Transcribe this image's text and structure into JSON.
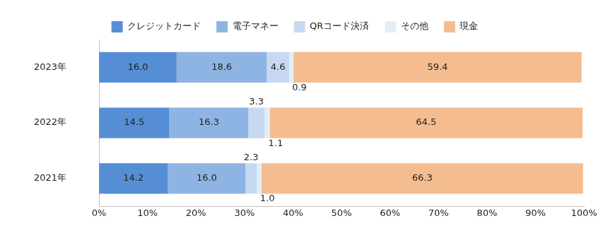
{
  "chart_data": {
    "type": "bar",
    "orientation": "horizontal",
    "stacked": true,
    "data_labels": true,
    "legend": "top",
    "grid": false,
    "categories": [
      "2023年",
      "2022年",
      "2021年"
    ],
    "series": [
      {
        "name": "クレジットカード",
        "color": "#558ed5",
        "values": [
          16.0,
          14.5,
          14.2
        ],
        "value_labels": [
          "16.0",
          "14.5",
          "14.2"
        ]
      },
      {
        "name": "電子マネー",
        "color": "#8eb4e3",
        "values": [
          18.6,
          16.3,
          16.0
        ],
        "value_labels": [
          "18.6",
          "16.3",
          "16.0"
        ]
      },
      {
        "name": "QRコード決済",
        "color": "#c6d9f1",
        "values": [
          4.6,
          3.3,
          2.3
        ],
        "value_labels": [
          "4.6",
          "3.3",
          "2.3"
        ]
      },
      {
        "name": "その他",
        "color": "#e3edf9",
        "values": [
          0.9,
          1.1,
          1.0
        ],
        "value_labels": [
          "0.9",
          "1.1",
          "1.0"
        ]
      },
      {
        "name": "現金",
        "color": "#f5bd8f",
        "values": [
          59.4,
          64.5,
          66.3
        ],
        "value_labels": [
          "59.4",
          "64.5",
          "66.3"
        ]
      }
    ],
    "xlim": [
      0,
      100
    ],
    "xticks": [
      {
        "value": 0,
        "label": "0%"
      },
      {
        "value": 10,
        "label": "10%"
      },
      {
        "value": 20,
        "label": "20%"
      },
      {
        "value": 30,
        "label": "30%"
      },
      {
        "value": 40,
        "label": "40%"
      },
      {
        "value": 50,
        "label": "50%"
      },
      {
        "value": 60,
        "label": "60%"
      },
      {
        "value": 70,
        "label": "70%"
      },
      {
        "value": 80,
        "label": "80%"
      },
      {
        "value": 90,
        "label": "90%"
      },
      {
        "value": 100,
        "label": "100%"
      }
    ]
  }
}
